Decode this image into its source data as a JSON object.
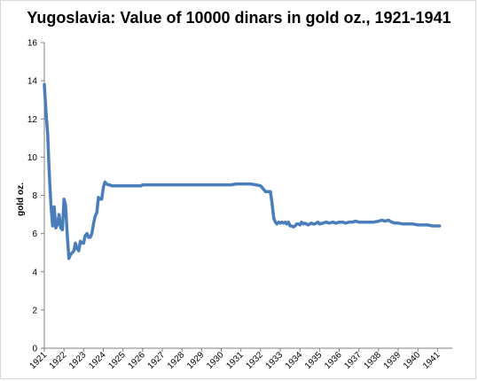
{
  "chart_data": {
    "type": "line",
    "title": "Yugoslavia: Value of 10000 dinars in gold oz., 1921-1941",
    "xlabel": "",
    "ylabel": "gold oz.",
    "xlim": [
      1921,
      1941.75
    ],
    "ylim": [
      0,
      16
    ],
    "yticks": [
      0,
      2,
      4,
      6,
      8,
      10,
      12,
      14,
      16
    ],
    "xticks": [
      "1921",
      "1922",
      "1923",
      "1924",
      "1925",
      "1926",
      "1927",
      "1928",
      "1929",
      "1930",
      "1931",
      "1932",
      "1933",
      "1934",
      "1935",
      "1936",
      "1937",
      "1938",
      "1939",
      "1940",
      "1941"
    ],
    "grid": false,
    "legend": "none",
    "series_color": "#4a7ebb",
    "series": [
      {
        "x": [
          1921.0,
          1921.08,
          1921.17,
          1921.25,
          1921.33,
          1921.42,
          1921.5,
          1921.58,
          1921.67,
          1921.75,
          1921.83,
          1921.92,
          1922.0,
          1922.08,
          1922.17,
          1922.25,
          1922.33,
          1922.42,
          1922.5,
          1922.58,
          1922.67,
          1922.75,
          1922.83,
          1922.92,
          1923.0,
          1923.08,
          1923.17,
          1923.25,
          1923.33,
          1923.42,
          1923.5,
          1923.58,
          1923.67,
          1923.75,
          1923.83,
          1923.92,
          1924.0,
          1924.08,
          1924.17,
          1924.25,
          1924.33,
          1924.42,
          1924.5,
          1924.58,
          1924.67,
          1924.75,
          1924.83,
          1924.92,
          1925.0,
          1925.08,
          1925.17,
          1925.25,
          1925.33,
          1925.42,
          1925.5,
          1925.58,
          1925.67,
          1925.75,
          1925.83,
          1925.92,
          1926.0,
          1926.25,
          1926.5,
          1926.75,
          1927.0,
          1927.5,
          1928.0,
          1928.5,
          1929.0,
          1929.5,
          1930.0,
          1930.25,
          1930.5,
          1930.75,
          1931.0,
          1931.25,
          1931.5,
          1931.75,
          1932.0,
          1932.25,
          1932.5,
          1932.58,
          1932.67,
          1932.75,
          1932.83,
          1932.92,
          1933.0,
          1933.08,
          1933.17,
          1933.25,
          1933.33,
          1933.42,
          1933.5,
          1933.58,
          1933.67,
          1933.75,
          1933.83,
          1933.92,
          1934.0,
          1934.08,
          1934.17,
          1934.25,
          1934.33,
          1934.42,
          1934.5,
          1934.58,
          1934.67,
          1934.75,
          1934.83,
          1934.92,
          1935.0,
          1935.17,
          1935.33,
          1935.5,
          1935.67,
          1935.83,
          1936.0,
          1936.17,
          1936.33,
          1936.5,
          1936.67,
          1936.83,
          1937.0,
          1937.25,
          1937.5,
          1937.75,
          1938.0,
          1938.17,
          1938.33,
          1938.5,
          1938.67,
          1938.83,
          1939.0,
          1939.25,
          1939.5,
          1939.75,
          1940.0,
          1940.25,
          1940.5,
          1940.75,
          1941.0,
          1941.1
        ],
        "y": [
          13.8,
          12.4,
          11.2,
          9.2,
          7.6,
          6.4,
          7.4,
          6.3,
          6.5,
          7.0,
          6.3,
          6.2,
          7.8,
          7.5,
          5.9,
          4.7,
          4.9,
          5.0,
          5.1,
          5.5,
          5.2,
          5.1,
          5.6,
          5.5,
          5.5,
          5.9,
          6.0,
          5.8,
          5.8,
          6.0,
          6.5,
          6.9,
          7.1,
          7.9,
          7.8,
          7.8,
          8.4,
          8.7,
          8.6,
          8.55,
          8.55,
          8.5,
          8.5,
          8.5,
          8.5,
          8.5,
          8.5,
          8.5,
          8.5,
          8.5,
          8.5,
          8.5,
          8.5,
          8.5,
          8.5,
          8.5,
          8.5,
          8.5,
          8.5,
          8.5,
          8.55,
          8.55,
          8.55,
          8.55,
          8.55,
          8.55,
          8.55,
          8.55,
          8.55,
          8.55,
          8.55,
          8.55,
          8.55,
          8.6,
          8.6,
          8.6,
          8.6,
          8.55,
          8.5,
          8.2,
          8.2,
          7.6,
          6.8,
          6.6,
          6.5,
          6.6,
          6.55,
          6.6,
          6.55,
          6.6,
          6.5,
          6.6,
          6.4,
          6.4,
          6.35,
          6.4,
          6.5,
          6.5,
          6.45,
          6.6,
          6.5,
          6.55,
          6.5,
          6.45,
          6.5,
          6.55,
          6.5,
          6.5,
          6.55,
          6.6,
          6.5,
          6.55,
          6.6,
          6.55,
          6.6,
          6.55,
          6.6,
          6.6,
          6.55,
          6.6,
          6.6,
          6.65,
          6.6,
          6.6,
          6.6,
          6.6,
          6.65,
          6.7,
          6.65,
          6.7,
          6.6,
          6.55,
          6.55,
          6.5,
          6.5,
          6.5,
          6.45,
          6.45,
          6.45,
          6.4,
          6.4,
          6.4
        ]
      }
    ]
  }
}
